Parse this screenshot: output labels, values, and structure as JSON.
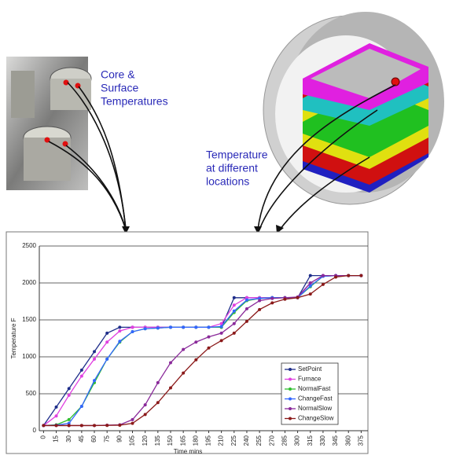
{
  "chart_data": {
    "type": "line",
    "annotations": [
      {
        "lines": [
          "Core &",
          "Surface",
          "Temperatures"
        ]
      },
      {
        "lines": [
          "Temperature",
          "at different",
          "locations"
        ]
      }
    ],
    "x_label": "Time mins",
    "y_label": "Temperature F",
    "x": [
      0,
      15,
      30,
      45,
      60,
      75,
      90,
      105,
      120,
      135,
      150,
      165,
      180,
      195,
      210,
      225,
      240,
      255,
      270,
      285,
      300,
      315,
      330,
      345,
      360,
      375
    ],
    "xticks": [
      0,
      15,
      30,
      45,
      60,
      75,
      90,
      105,
      120,
      135,
      150,
      165,
      180,
      195,
      210,
      225,
      240,
      255,
      270,
      285,
      300,
      315,
      330,
      345,
      360,
      375
    ],
    "xlim": [
      -5,
      383
    ],
    "ylim": [
      0,
      2500
    ],
    "yticks": [
      0,
      500,
      1000,
      1500,
      2000,
      2500
    ],
    "grid": true,
    "legend": "right",
    "series": [
      {
        "name": "SetPoint",
        "color": "#1f2e8a",
        "values": [
          70,
          320,
          570,
          820,
          1070,
          1320,
          1400,
          1400,
          1400,
          1400,
          1400,
          1400,
          1400,
          1400,
          1400,
          1800,
          1800,
          1800,
          1800,
          1800,
          1800,
          2100,
          2100,
          2100,
          2100,
          2100
        ]
      },
      {
        "name": "Furnace",
        "color": "#e040e0",
        "values": [
          70,
          200,
          480,
          740,
          970,
          1200,
          1350,
          1400,
          1400,
          1400,
          1400,
          1400,
          1400,
          1400,
          1450,
          1700,
          1800,
          1800,
          1800,
          1800,
          1800,
          2000,
          2100,
          2100,
          2100,
          2100
        ]
      },
      {
        "name": "NormalFast",
        "color": "#2fbf2f",
        "values": [
          70,
          80,
          150,
          330,
          650,
          970,
          1200,
          1340,
          1380,
          1390,
          1400,
          1400,
          1400,
          1400,
          1400,
          1600,
          1760,
          1790,
          1800,
          1800,
          1800,
          1950,
          2090,
          2100,
          2100,
          2100
        ]
      },
      {
        "name": "ChangeFast",
        "color": "#3366ff",
        "values": [
          70,
          75,
          100,
          330,
          680,
          970,
          1210,
          1340,
          1380,
          1390,
          1400,
          1400,
          1400,
          1400,
          1410,
          1620,
          1770,
          1790,
          1800,
          1800,
          1800,
          1960,
          2090,
          2100,
          2100,
          2100
        ]
      },
      {
        "name": "NormalSlow",
        "color": "#8a2a9a",
        "values": [
          70,
          70,
          70,
          70,
          70,
          75,
          80,
          150,
          350,
          650,
          920,
          1100,
          1200,
          1270,
          1320,
          1450,
          1650,
          1760,
          1790,
          1800,
          1810,
          2000,
          2100,
          2100,
          2100,
          2100
        ]
      },
      {
        "name": "ChangeSlow",
        "color": "#8b1a1a",
        "values": [
          70,
          70,
          70,
          70,
          70,
          72,
          75,
          100,
          220,
          380,
          580,
          780,
          960,
          1120,
          1220,
          1320,
          1480,
          1640,
          1730,
          1780,
          1800,
          1850,
          1980,
          2080,
          2100,
          2100
        ]
      }
    ]
  }
}
